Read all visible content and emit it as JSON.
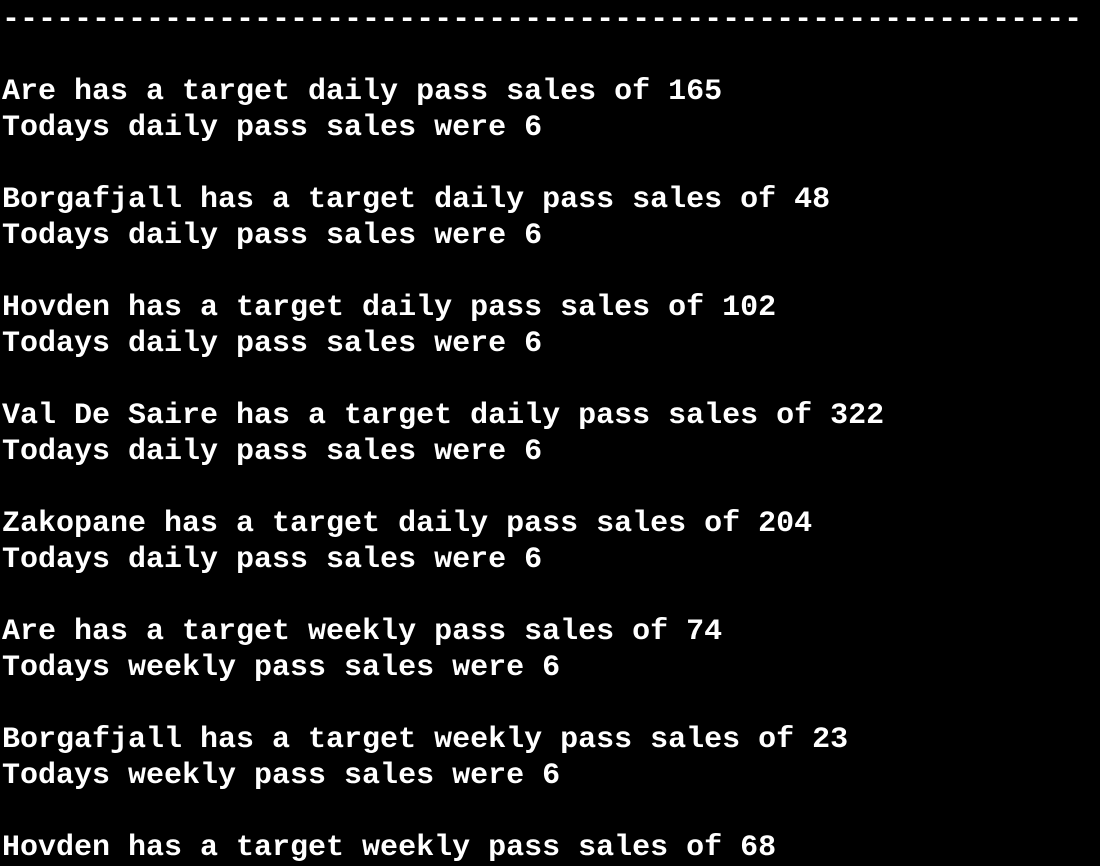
{
  "terminal": {
    "separator": "------------------------------------------------------------",
    "lines": [
      "",
      "Are has a target daily pass sales of 165",
      "Todays daily pass sales were 6",
      "",
      "Borgafjall has a target daily pass sales of 48",
      "Todays daily pass sales were 6",
      "",
      "Hovden has a target daily pass sales of 102",
      "Todays daily pass sales were 6",
      "",
      "Val De Saire has a target daily pass sales of 322",
      "Todays daily pass sales were 6",
      "",
      "Zakopane has a target daily pass sales of 204",
      "Todays daily pass sales were 6",
      "",
      "Are has a target weekly pass sales of 74",
      "Todays weekly pass sales were 6",
      "",
      "Borgafjall has a target weekly pass sales of 23",
      "Todays weekly pass sales were 6",
      "",
      "Hovden has a target weekly pass sales of 68"
    ]
  },
  "colors": {
    "background": "#000000",
    "text": "#ffffff"
  }
}
